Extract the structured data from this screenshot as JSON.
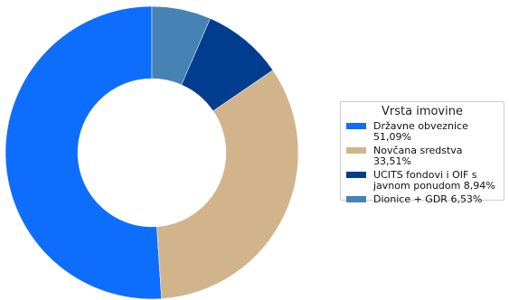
{
  "chart_data": {
    "type": "pie",
    "subtype": "donut",
    "legend_title": "Vrsta imovine",
    "legend_position": "right",
    "series": [
      {
        "name": "Državne obveznice",
        "value": 51.09,
        "label": "Državne obveznice\n51,09%",
        "color": "#0d6efd"
      },
      {
        "name": "Novčana sredstva",
        "value": 33.51,
        "label": "Novčana sredstva 33,51%",
        "color": "#d2b48c"
      },
      {
        "name": "UCITS fondovi i OIF s javnom ponudom",
        "value": 8.94,
        "label": "UCITS fondovi i OIF s\njavnom ponudom 8,94%",
        "color": "#003d8f"
      },
      {
        "name": "Dionice + GDR",
        "value": 6.53,
        "label": "Dionice + GDR 6,53%",
        "color": "#4682b4"
      }
    ],
    "start": "top",
    "direction": "clockwise-from-last"
  }
}
